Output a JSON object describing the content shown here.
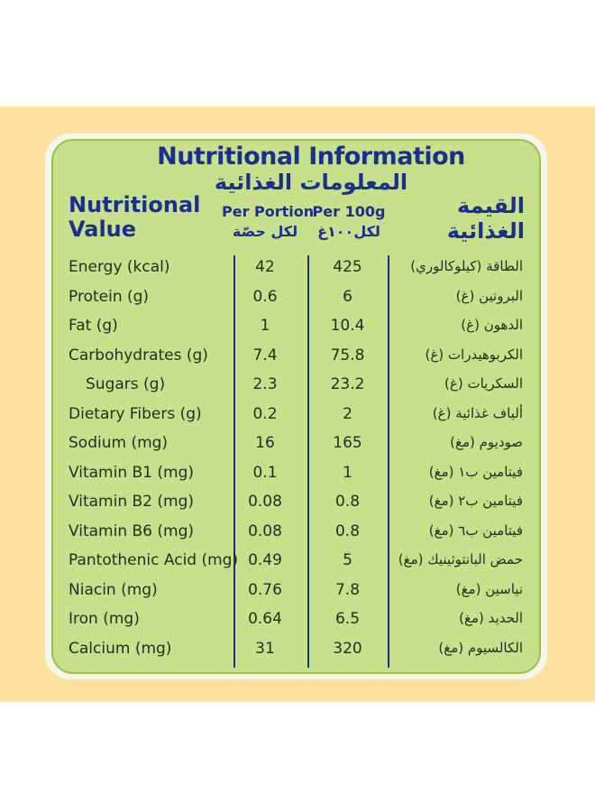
{
  "title_en": "Nutritional Information",
  "title_ar": "المعلومات الغذائية",
  "header": {
    "nv_line1": "Nutritional",
    "nv_line2": "Value",
    "per_portion_en": "Per Portion",
    "per_portion_ar": "لكل حصّة",
    "per_100g_en": "Per 100g",
    "per_100g_ar": "لكل١٠٠غ",
    "ar_line1": "القيمة",
    "ar_line2": "الغذائية"
  },
  "rows": [
    {
      "en": "Energy (kcal)",
      "pp": "42",
      "p100": "425",
      "ar": "الطاقة (كيلوكالوري)"
    },
    {
      "en": "Protein (g)",
      "pp": "0.6",
      "p100": "6",
      "ar": "البروتين (غ)"
    },
    {
      "en": "Fat (g)",
      "pp": "1",
      "p100": "10.4",
      "ar": "الدهون (غ)"
    },
    {
      "en": "Carbohydrates (g)",
      "pp": "7.4",
      "p100": "75.8",
      "ar": "الكربوهيدرات (غ)"
    },
    {
      "en": "Sugars (g)",
      "pp": "2.3",
      "p100": "23.2",
      "ar": "السكريات (غ)"
    },
    {
      "en": "Dietary Fibers (g)",
      "pp": "0.2",
      "p100": "2",
      "ar": "ألياف غذائية (غ)"
    },
    {
      "en": "Sodium (mg)",
      "pp": "16",
      "p100": "165",
      "ar": "صوديوم (مغ)"
    },
    {
      "en": "Vitamin B1 (mg)",
      "pp": "0.1",
      "p100": "1",
      "ar": "فيتامين ب١ (مغ)"
    },
    {
      "en": "Vitamin B2 (mg)",
      "pp": "0.08",
      "p100": "0.8",
      "ar": "فيتامين ب٢ (مغ)"
    },
    {
      "en": "Vitamin B6 (mg)",
      "pp": "0.08",
      "p100": "0.8",
      "ar": "فيتامين ب٦ (مغ)"
    },
    {
      "en": "Pantothenic Acid (mg)",
      "pp": "0.49",
      "p100": "5",
      "ar": "حمض البانتوثينيك (مغ)"
    },
    {
      "en": "Niacin (mg)",
      "pp": "0.76",
      "p100": "7.8",
      "ar": "نياسين (مغ)"
    },
    {
      "en": "Iron (mg)",
      "pp": "0.64",
      "p100": "6.5",
      "ar": "الحديد (مغ)"
    },
    {
      "en": "Calcium (mg)",
      "pp": "31",
      "p100": "320",
      "ar": "الكالسيوم (مغ)"
    }
  ]
}
